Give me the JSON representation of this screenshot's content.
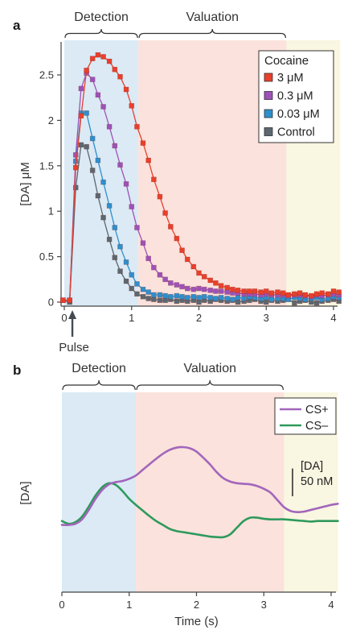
{
  "chart_data": [
    {
      "panel": "a",
      "type": "line",
      "phases": [
        {
          "label": "Detection",
          "start": 0,
          "end": 1.1,
          "color": "#dbeaf5"
        },
        {
          "label": "Valuation",
          "start": 1.1,
          "end": 3.3,
          "color": "#fbe2dc"
        },
        {
          "label": "",
          "start": 3.3,
          "end": 4.1,
          "color": "#f9f6e1"
        }
      ],
      "xlabel": "",
      "ylabel": "[DA] μM",
      "xlim": [
        -0.05,
        4.1
      ],
      "ylim": [
        -0.05,
        2.85
      ],
      "xticks": [
        "0",
        "1",
        "2",
        "3",
        "4"
      ],
      "yticks": [
        "0",
        "0.5",
        "1",
        "1.5",
        "2",
        "2.5"
      ],
      "annotation": "Pulse",
      "legend_title": "Cocaine",
      "legend_position": "top-right",
      "series": [
        {
          "name": "3 μM",
          "color": "#e8402c",
          "x": [
            -0.02,
            0.08,
            0.17,
            0.25,
            0.33,
            0.42,
            0.5,
            0.58,
            0.67,
            0.75,
            0.83,
            0.92,
            1.0,
            1.08,
            1.17,
            1.25,
            1.33,
            1.42,
            1.5,
            1.58,
            1.67,
            1.75,
            1.83,
            1.92,
            2.0,
            2.08,
            2.17,
            2.25,
            2.33,
            2.42,
            2.5,
            2.58,
            2.67,
            2.75,
            2.83,
            2.92,
            3.0,
            3.08,
            3.17,
            3.25,
            3.33,
            3.42,
            3.5,
            3.58,
            3.67,
            3.75,
            3.83,
            3.92,
            4.0,
            4.08
          ],
          "y": [
            0.02,
            0.02,
            1.48,
            2.05,
            2.55,
            2.68,
            2.72,
            2.7,
            2.65,
            2.56,
            2.48,
            2.34,
            2.16,
            1.93,
            1.75,
            1.56,
            1.35,
            1.16,
            0.98,
            0.83,
            0.7,
            0.57,
            0.47,
            0.39,
            0.32,
            0.28,
            0.24,
            0.21,
            0.18,
            0.16,
            0.14,
            0.13,
            0.12,
            0.12,
            0.12,
            0.11,
            0.12,
            0.1,
            0.11,
            0.1,
            0.08,
            0.09,
            0.1,
            0.08,
            0.07,
            0.09,
            0.1,
            0.09,
            0.12,
            0.11
          ]
        },
        {
          "name": "0.3 μM",
          "color": "#9d52b8",
          "x": [
            -0.02,
            0.08,
            0.17,
            0.25,
            0.33,
            0.42,
            0.5,
            0.58,
            0.67,
            0.75,
            0.83,
            0.92,
            1.0,
            1.08,
            1.17,
            1.25,
            1.33,
            1.42,
            1.5,
            1.58,
            1.67,
            1.75,
            1.83,
            1.92,
            2.0,
            2.08,
            2.17,
            2.25,
            2.33,
            2.42,
            2.5,
            2.58,
            2.67,
            2.75,
            2.83,
            2.92,
            3.0,
            3.08,
            3.17,
            3.25,
            3.33,
            3.42,
            3.5,
            3.58,
            3.67,
            3.75,
            3.83,
            3.92,
            4.0,
            4.08
          ],
          "y": [
            0.02,
            0.02,
            1.62,
            2.35,
            2.52,
            2.45,
            2.28,
            2.15,
            1.93,
            1.72,
            1.51,
            1.3,
            1.05,
            0.82,
            0.65,
            0.48,
            0.38,
            0.3,
            0.25,
            0.21,
            0.19,
            0.17,
            0.15,
            0.14,
            0.15,
            0.14,
            0.13,
            0.12,
            0.12,
            0.11,
            0.1,
            0.1,
            0.09,
            0.09,
            0.09,
            0.08,
            0.09,
            0.08,
            0.08,
            0.08,
            0.07,
            0.08,
            0.08,
            0.07,
            0.06,
            0.08,
            0.07,
            0.08,
            0.09,
            0.08
          ]
        },
        {
          "name": "0.03 μM",
          "color": "#2e8fcc",
          "x": [
            -0.02,
            0.08,
            0.17,
            0.25,
            0.33,
            0.42,
            0.5,
            0.58,
            0.67,
            0.75,
            0.83,
            0.92,
            1.0,
            1.08,
            1.17,
            1.25,
            1.33,
            1.42,
            1.5,
            1.58,
            1.67,
            1.75,
            1.83,
            1.92,
            2.0,
            2.08,
            2.17,
            2.25,
            2.33,
            2.42,
            2.5,
            2.58,
            2.67,
            2.75,
            2.83,
            2.92,
            3.0,
            3.08,
            3.17,
            3.25,
            3.33,
            3.42,
            3.5,
            3.58,
            3.67,
            3.75,
            3.83,
            3.92,
            4.0,
            4.08
          ],
          "y": [
            0.02,
            0.02,
            1.55,
            2.08,
            2.08,
            1.8,
            1.56,
            1.32,
            1.06,
            0.82,
            0.61,
            0.44,
            0.3,
            0.2,
            0.14,
            0.11,
            0.08,
            0.08,
            0.07,
            0.06,
            0.07,
            0.06,
            0.05,
            0.06,
            0.05,
            0.06,
            0.05,
            0.04,
            0.05,
            0.04,
            0.03,
            0.05,
            0.04,
            0.06,
            0.05,
            0.04,
            0.05,
            0.03,
            0.04,
            0.04,
            0.03,
            0.05,
            0.04,
            0.03,
            0.04,
            0.05,
            0.03,
            0.04,
            0.06,
            0.05
          ]
        },
        {
          "name": "Control",
          "color": "#5c6770",
          "x": [
            -0.02,
            0.08,
            0.17,
            0.25,
            0.33,
            0.42,
            0.5,
            0.58,
            0.67,
            0.75,
            0.83,
            0.92,
            1.0,
            1.08,
            1.17,
            1.25,
            1.33,
            1.42,
            1.5,
            1.58,
            1.67,
            1.75,
            1.83,
            1.92,
            2.0,
            2.08,
            2.17,
            2.25,
            2.33,
            2.42,
            2.5,
            2.58,
            2.67,
            2.75,
            2.83,
            2.92,
            3.0,
            3.08,
            3.17,
            3.25,
            3.33,
            3.42,
            3.5,
            3.58,
            3.67,
            3.75,
            3.83,
            3.92,
            4.0,
            4.08
          ],
          "y": [
            0.02,
            0.0,
            1.26,
            1.73,
            1.71,
            1.45,
            1.17,
            0.93,
            0.69,
            0.49,
            0.34,
            0.23,
            0.15,
            0.09,
            0.06,
            0.04,
            0.03,
            0.02,
            0.02,
            0.03,
            0.01,
            0.02,
            0.01,
            0.02,
            0.0,
            0.02,
            0.01,
            0.03,
            0.02,
            0.01,
            0.02,
            0.0,
            0.01,
            0.02,
            0.03,
            0.01,
            0.0,
            0.02,
            0.01,
            0.02,
            0.03,
            -0.01,
            0.01,
            0.02,
            0.0,
            -0.01,
            0.01,
            0.02,
            0.03,
            0.01
          ]
        }
      ]
    },
    {
      "panel": "b",
      "type": "line",
      "phases": [
        {
          "label": "Detection",
          "start": 0,
          "end": 1.1,
          "color": "#dbeaf5"
        },
        {
          "label": "Valuation",
          "start": 1.1,
          "end": 3.3,
          "color": "#fbe2dc"
        },
        {
          "label": "",
          "start": 3.3,
          "end": 4.1,
          "color": "#f9f6e1"
        }
      ],
      "xlabel": "Time (s)",
      "ylabel": "[DA]",
      "xlim": [
        0,
        4.1
      ],
      "xticks": [
        "0",
        "1",
        "2",
        "3",
        "4"
      ],
      "scale_bar": {
        "label_line1": "[DA]",
        "label_line2": "50 nM",
        "value_nM": 50
      },
      "legend_position": "top-right",
      "series": [
        {
          "name": "CS+",
          "color": "#a266bb",
          "x": [
            0,
            0.1,
            0.2,
            0.3,
            0.4,
            0.5,
            0.6,
            0.7,
            0.8,
            0.9,
            1.0,
            1.1,
            1.2,
            1.3,
            1.4,
            1.5,
            1.6,
            1.7,
            1.8,
            1.9,
            2.0,
            2.1,
            2.2,
            2.3,
            2.4,
            2.5,
            2.6,
            2.7,
            2.8,
            2.9,
            3.0,
            3.1,
            3.2,
            3.3,
            3.4,
            3.5,
            3.6,
            3.7,
            3.8,
            3.9,
            4.0,
            4.1
          ],
          "y": [
            5,
            5,
            7,
            15,
            32,
            52,
            68,
            78,
            82,
            84,
            88,
            94,
            104,
            114,
            124,
            133,
            140,
            144,
            145,
            143,
            137,
            126,
            114,
            100,
            89,
            83,
            80,
            79,
            78,
            75,
            70,
            63,
            50,
            37,
            30,
            28,
            29,
            32,
            35,
            38,
            41,
            43
          ]
        },
        {
          "name": "CS–",
          "color": "#2e9a5c",
          "x": [
            0,
            0.1,
            0.2,
            0.3,
            0.4,
            0.5,
            0.6,
            0.7,
            0.8,
            0.9,
            1.0,
            1.1,
            1.2,
            1.3,
            1.4,
            1.5,
            1.6,
            1.7,
            1.8,
            1.9,
            2.0,
            2.1,
            2.2,
            2.3,
            2.4,
            2.5,
            2.6,
            2.7,
            2.8,
            2.9,
            3.0,
            3.1,
            3.2,
            3.3,
            3.4,
            3.5,
            3.6,
            3.7,
            3.8,
            3.9,
            4.0,
            4.1
          ],
          "y": [
            12,
            7,
            10,
            20,
            38,
            58,
            73,
            80,
            77,
            66,
            52,
            41,
            31,
            21,
            12,
            5,
            -2,
            -6,
            -8,
            -10,
            -12,
            -14,
            -16,
            -17,
            -17,
            -12,
            0,
            12,
            18,
            18,
            16,
            15,
            15,
            15,
            14,
            13,
            12,
            11,
            12,
            12,
            12,
            12
          ]
        }
      ]
    }
  ]
}
